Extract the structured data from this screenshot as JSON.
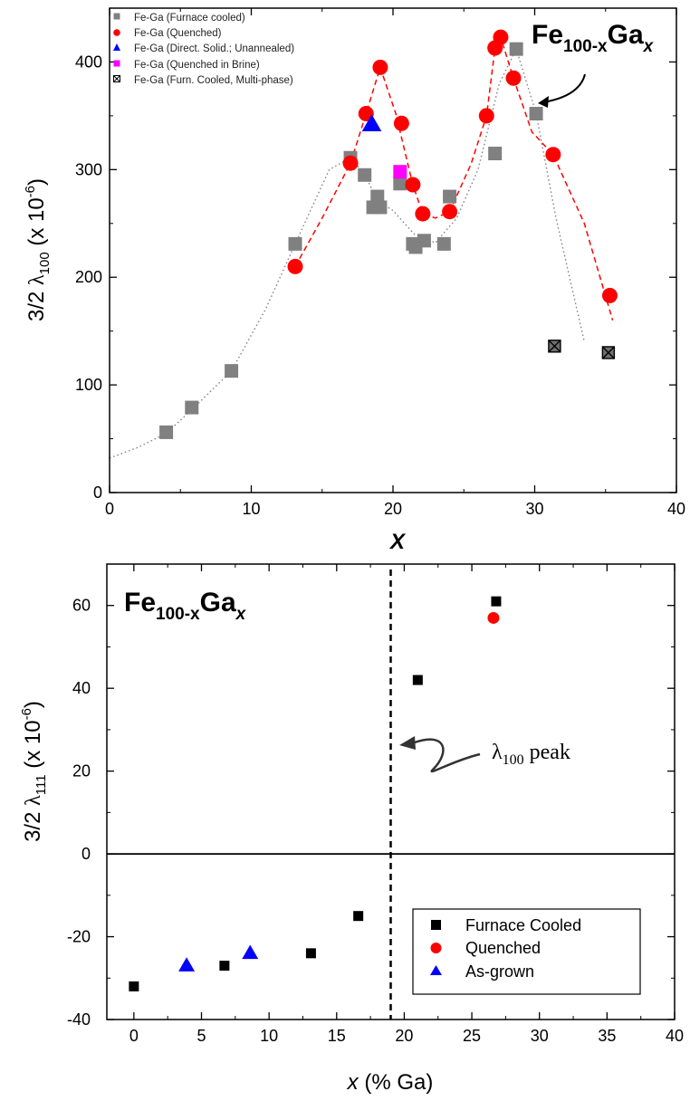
{
  "chart_data": [
    {
      "type": "scatter",
      "title": "Fe100-xGax",
      "title_parts": {
        "base1": "Fe",
        "sub1": "100-x",
        "base2": "Ga",
        "sub2": "x"
      },
      "xlabel": "X",
      "ylabel": "3/2 λ100 (x 10-6)",
      "ylabel_parts": {
        "prefix": "3/2 ",
        "lambda": "λ",
        "sub": "100",
        "unit_open": " (x 10",
        "sup": "-6",
        "unit_close": ")"
      },
      "xlim": [
        0,
        40
      ],
      "ylim": [
        0,
        450
      ],
      "xticks": [
        0,
        10,
        20,
        30,
        40
      ],
      "yticks": [
        0,
        100,
        200,
        300,
        400
      ],
      "legend_position": "top-left",
      "grid": false,
      "series": [
        {
          "name": "Fe-Ga (Furnace cooled)",
          "marker": "square",
          "color": "#808080",
          "x": [
            4,
            5.8,
            8.6,
            13.1,
            17,
            18,
            18.6,
            18.9,
            19.1,
            20.5,
            21.4,
            21.6,
            22.2,
            23.6,
            24,
            27.2,
            28.7,
            30.1
          ],
          "y": [
            56,
            79,
            113,
            231,
            311,
            295,
            265,
            275,
            265,
            287,
            231,
            228,
            234,
            231,
            275,
            315,
            412,
            352
          ]
        },
        {
          "name": "Fe-Ga (Quenched)",
          "marker": "circle",
          "color": "#ff0000",
          "x": [
            13.1,
            17,
            18.1,
            19.1,
            20.6,
            21.4,
            22.1,
            24,
            26.6,
            27.2,
            27.6,
            28.5,
            31.3,
            35.3
          ],
          "y": [
            210,
            306,
            352,
            395,
            343,
            286,
            259,
            261,
            350,
            413,
            423,
            385,
            314,
            183
          ]
        },
        {
          "name": "Fe-Ga (Direct. Solid.; Unannealed)",
          "marker": "triangle",
          "color": "#0000ff",
          "x": [
            18.5
          ],
          "y": [
            342
          ]
        },
        {
          "name": "Fe-Ga (Quenched in Brine)",
          "marker": "square",
          "color": "#ff00ff",
          "x": [
            20.5
          ],
          "y": [
            298
          ]
        },
        {
          "name": "Fe-Ga (Furn. Cooled, Multi-phase)",
          "marker": "square-x",
          "color": "#707070",
          "x": [
            31.4,
            35.2
          ],
          "y": [
            136,
            130
          ]
        }
      ],
      "trend_lines": [
        {
          "style": "dotted",
          "color": "#808080",
          "x": [
            0,
            2,
            4,
            5.8,
            8.6,
            11,
            13.1,
            15.5,
            17,
            18,
            18.9,
            20,
            21.5,
            23,
            24.5,
            26,
            27.5,
            28.7,
            30.1,
            31.5,
            33.5
          ],
          "y": [
            32,
            42,
            55,
            77,
            113,
            170,
            231,
            300,
            311,
            296,
            271,
            262,
            240,
            232,
            255,
            300,
            380,
            412,
            352,
            255,
            140
          ]
        },
        {
          "style": "dashed",
          "color": "#ff0000",
          "x": [
            13.1,
            15,
            17,
            18.1,
            19.1,
            20.2,
            21.4,
            22.1,
            23,
            24,
            25.5,
            26.6,
            27.2,
            27.6,
            28.5,
            29.8,
            31.3,
            33.5,
            35.5
          ],
          "y": [
            210,
            255,
            306,
            352,
            395,
            352,
            286,
            259,
            255,
            261,
            305,
            350,
            413,
            423,
            385,
            335,
            314,
            250,
            160
          ]
        }
      ],
      "annotations": [
        {
          "text": "Fe100-xGax",
          "arrow_to": [
            30.1,
            352
          ]
        }
      ]
    },
    {
      "type": "scatter",
      "title": "Fe100-xGax",
      "xlabel": "x (% Ga)",
      "xlabel_parts": {
        "var": "x",
        "rest": " (% Ga)"
      },
      "ylabel": "3/2 λ111 (x 10-6)",
      "ylabel_parts": {
        "prefix": "3/2 ",
        "lambda": "λ",
        "sub": "111",
        "unit_open": " (x 10",
        "sup": "-6",
        "unit_close": ")"
      },
      "xlim": [
        -2,
        40
      ],
      "ylim": [
        -40,
        70
      ],
      "xticks": [
        0,
        5,
        10,
        15,
        20,
        25,
        30,
        35,
        40
      ],
      "yticks": [
        -40,
        -20,
        0,
        20,
        40,
        60
      ],
      "legend_position": "bottom-right",
      "grid": false,
      "series": [
        {
          "name": "Furnace Cooled",
          "marker": "square",
          "color": "#000000",
          "x": [
            0,
            6.7,
            13.1,
            16.6,
            21,
            26.8
          ],
          "y": [
            -32,
            -27,
            -24,
            -15,
            42,
            61
          ]
        },
        {
          "name": "Quenched",
          "marker": "circle",
          "color": "#ff0000",
          "x": [
            26.6
          ],
          "y": [
            57
          ]
        },
        {
          "name": "As-grown",
          "marker": "triangle",
          "color": "#0000ff",
          "x": [
            3.9,
            8.6
          ],
          "y": [
            -27,
            -24
          ]
        }
      ],
      "reference_lines": [
        {
          "orientation": "vertical",
          "x": 19,
          "style": "dashed",
          "color": "#000000"
        },
        {
          "orientation": "horizontal",
          "y": 0,
          "style": "solid",
          "color": "#000000"
        }
      ],
      "annotations": [
        {
          "text": "λ100 peak",
          "parts": {
            "lambda": "λ",
            "sub": "100",
            "rest": " peak"
          },
          "arrow_to": [
            19,
            27
          ]
        }
      ]
    }
  ]
}
